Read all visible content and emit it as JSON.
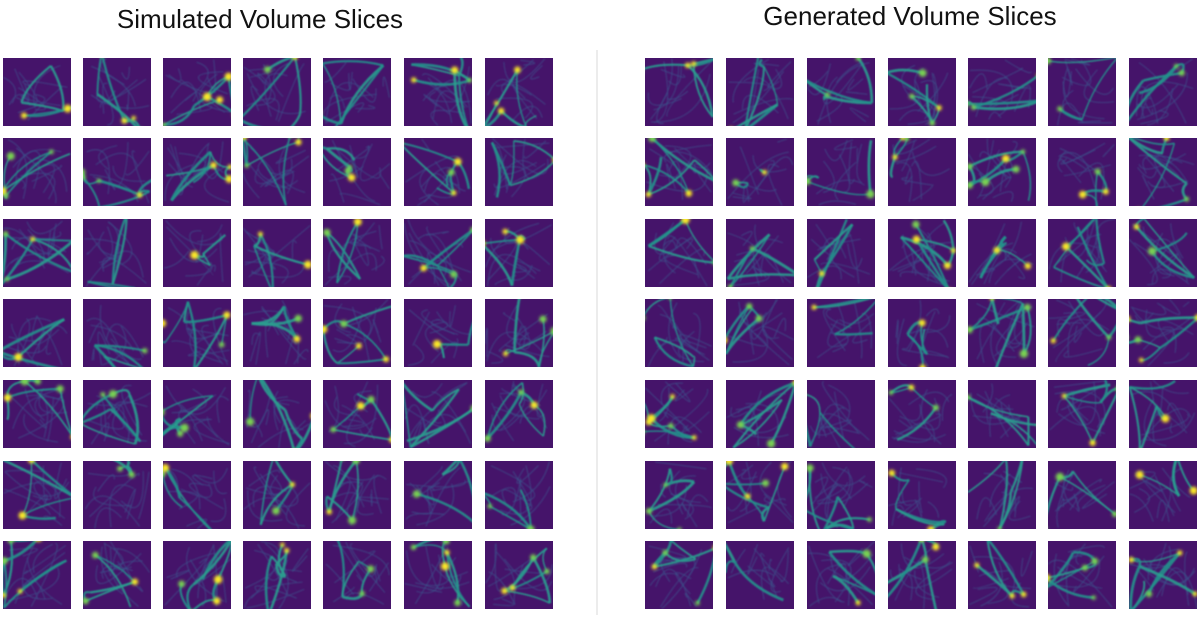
{
  "panels": [
    {
      "title": "Simulated Volume Slices"
    },
    {
      "title": "Generated Volume Slices"
    }
  ]
}
